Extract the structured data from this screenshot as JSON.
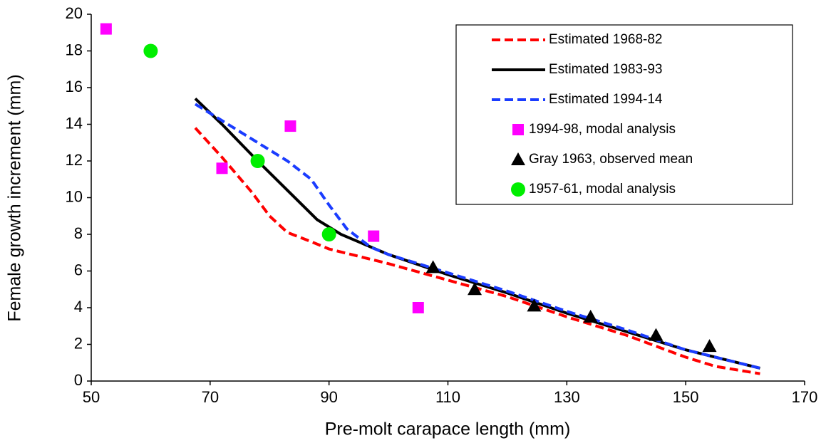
{
  "chart_data": {
    "type": "line",
    "x_label": "Pre-molt carapace length (mm)",
    "y_label": "Female growth increment (mm)",
    "xlim": [
      50,
      170
    ],
    "xticks": [
      50,
      70,
      90,
      110,
      130,
      150,
      170
    ],
    "ylim": [
      0,
      20
    ],
    "yticks": [
      0,
      2,
      4,
      6,
      8,
      10,
      12,
      14,
      16,
      18,
      20
    ],
    "legend": "upper right",
    "series": [
      {
        "name": "Estimated 1968-82",
        "type": "line",
        "color": "#ff0000",
        "dash": true,
        "x": [
          67.5,
          72,
          77,
          80,
          83,
          87,
          90,
          100,
          110,
          120,
          130,
          140,
          150,
          155,
          162.5
        ],
        "values": [
          13.8,
          12.2,
          10.3,
          9.0,
          8.1,
          7.6,
          7.2,
          6.4,
          5.5,
          4.6,
          3.5,
          2.5,
          1.3,
          0.8,
          0.4
        ]
      },
      {
        "name": "Estimated 1983-93",
        "type": "line",
        "color": "#000000",
        "dash": false,
        "x": [
          67.5,
          72,
          78,
          83,
          88,
          92,
          100,
          110,
          120,
          130,
          140,
          150,
          162.5
        ],
        "values": [
          15.4,
          14.0,
          12.0,
          10.4,
          8.8,
          8.0,
          6.9,
          5.8,
          4.8,
          3.7,
          2.7,
          1.7,
          0.7
        ]
      },
      {
        "name": "Estimated 1994-14",
        "type": "line",
        "color": "#1a3cff",
        "dash": true,
        "x": [
          67.5,
          72,
          78,
          83,
          87,
          90,
          93,
          97,
          100,
          110,
          120,
          130,
          140,
          150,
          162.5
        ],
        "values": [
          15.1,
          14.2,
          13.0,
          12.0,
          11.0,
          9.6,
          8.3,
          7.3,
          6.9,
          5.9,
          4.9,
          3.8,
          2.8,
          1.7,
          0.7
        ]
      },
      {
        "name": "1994-98, modal analysis",
        "type": "scatter",
        "marker": "square",
        "color": "#ff00ff",
        "x": [
          52.5,
          72,
          83.5,
          97.5,
          105
        ],
        "values": [
          19.2,
          11.6,
          13.9,
          7.9,
          4.0
        ]
      },
      {
        "name": "Gray 1963, observed mean",
        "type": "scatter",
        "marker": "triangle",
        "color": "#000000",
        "x": [
          107.5,
          114.5,
          124.5,
          134,
          145,
          154
        ],
        "values": [
          6.2,
          5.0,
          4.1,
          3.5,
          2.5,
          1.9
        ]
      },
      {
        "name": "1957-61, modal analysis",
        "type": "scatter",
        "marker": "circle",
        "color": "#00ee00",
        "x": [
          60,
          78,
          90
        ],
        "values": [
          18,
          12,
          8
        ]
      }
    ]
  }
}
